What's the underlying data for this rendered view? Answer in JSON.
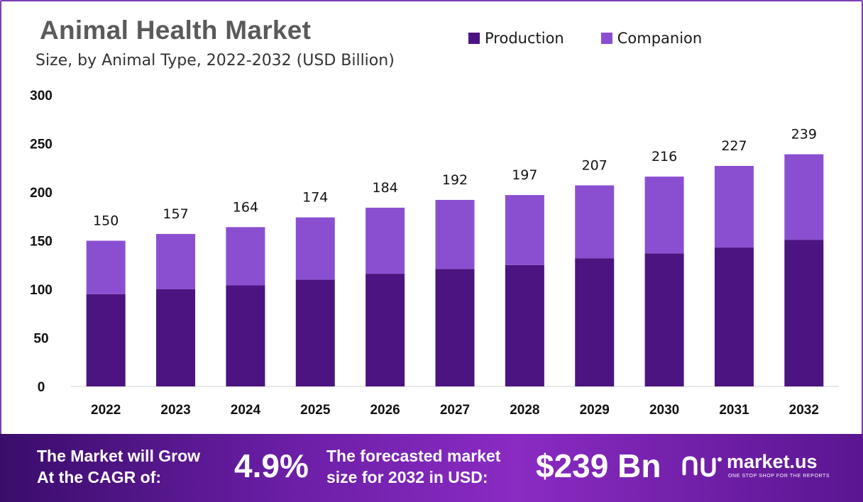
{
  "header": {
    "title": "Animal Health Market",
    "subtitle": "Size, by Animal Type, 2022-2032 (USD Billion)"
  },
  "legend": {
    "items": [
      {
        "label": "Production",
        "color": "#4b1480"
      },
      {
        "label": "Companion",
        "color": "#8a4fd1"
      }
    ]
  },
  "chart_data": {
    "type": "bar",
    "stacked": true,
    "categories": [
      "2022",
      "2023",
      "2024",
      "2025",
      "2026",
      "2027",
      "2028",
      "2029",
      "2030",
      "2031",
      "2032"
    ],
    "series": [
      {
        "name": "Production",
        "color": "#4b1480",
        "values": [
          95,
          100,
          104,
          110,
          116,
          121,
          125,
          132,
          137,
          143,
          151
        ]
      },
      {
        "name": "Companion",
        "color": "#8a4fd1",
        "values": [
          55,
          57,
          60,
          64,
          68,
          71,
          72,
          75,
          79,
          84,
          88
        ]
      }
    ],
    "totals": [
      150,
      157,
      164,
      174,
      184,
      192,
      197,
      207,
      216,
      227,
      239
    ],
    "yticks": [
      0,
      50,
      100,
      150,
      200,
      250,
      300
    ],
    "ylim": [
      0,
      300
    ],
    "grid": false,
    "legend_position": "top-right"
  },
  "banner": {
    "cagr_text_line1": "The Market will Grow",
    "cagr_text_line2": "At the CAGR of:",
    "cagr_value": "4.9%",
    "forecast_text_line1": "The forecasted market",
    "forecast_text_line2": "size for 2032 in USD:",
    "forecast_value": "$239 Bn",
    "brand_name": "market.us",
    "brand_tagline": "ONE STOP SHOP FOR THE REPORTS"
  }
}
